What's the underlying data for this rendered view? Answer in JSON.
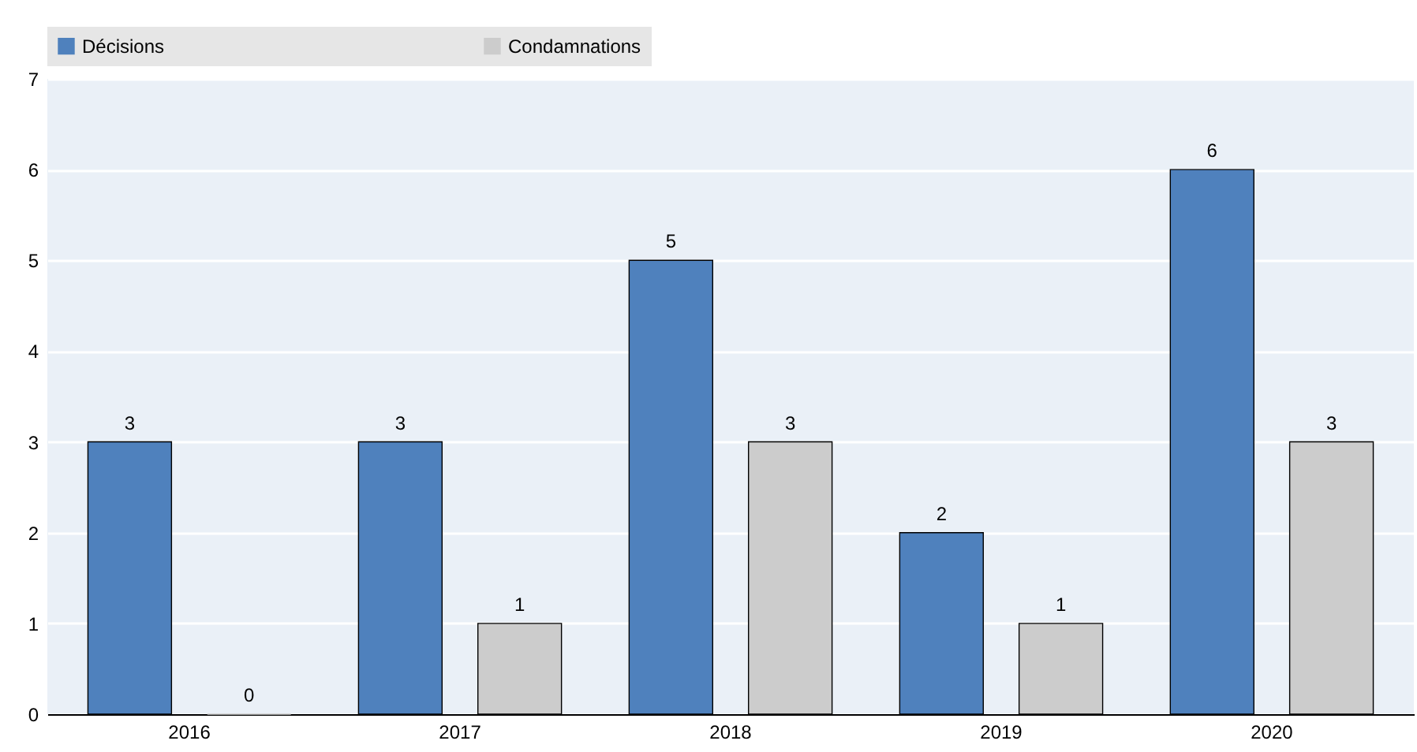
{
  "chart_data": {
    "type": "bar",
    "categories": [
      "2016",
      "2017",
      "2018",
      "2019",
      "2020"
    ],
    "series": [
      {
        "name": "Décisions",
        "color": "#4f81bd",
        "values": [
          3,
          3,
          5,
          2,
          6
        ]
      },
      {
        "name": "Condamnations",
        "color": "#cccccc",
        "values": [
          0,
          1,
          3,
          1,
          3
        ]
      }
    ],
    "ylim": [
      0,
      7
    ],
    "yticks": [
      0,
      1,
      2,
      3,
      4,
      5,
      6,
      7
    ],
    "grid": "y",
    "legend": "top",
    "data_labels": true
  }
}
